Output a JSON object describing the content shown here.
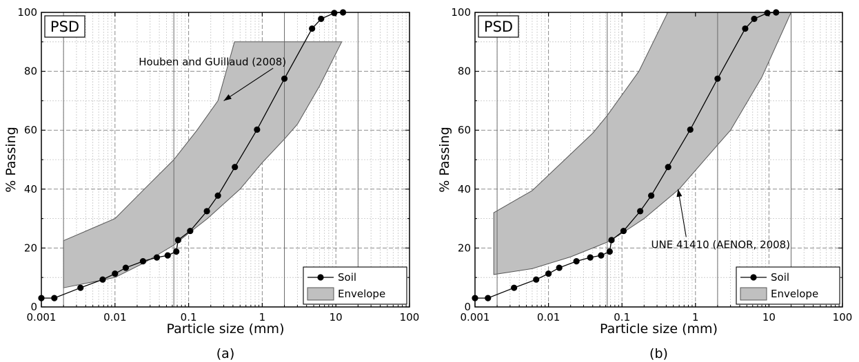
{
  "chart_data": [
    {
      "type": "line",
      "panel_caption": "(a)",
      "tag": "PSD",
      "xlabel": "Particle size (mm)",
      "ylabel": "% Passing",
      "xscale": "log",
      "xlim": [
        0.001,
        100
      ],
      "ylim": [
        0,
        100
      ],
      "x_ticks": [
        "0.001",
        "0.01",
        "0.1",
        "1",
        "10",
        "100"
      ],
      "y_ticks": [
        "0",
        "20",
        "40",
        "60",
        "80",
        "100"
      ],
      "grid": true,
      "reference_lines_x": [
        0.002,
        0.063,
        2,
        20
      ],
      "legend_position": "bottom-right",
      "series": [
        {
          "name": "Soil",
          "kind": "line-marker",
          "x": [
            0.001,
            0.0015,
            0.0034,
            0.0068,
            0.01,
            0.014,
            0.024,
            0.037,
            0.052,
            0.068,
            0.072,
            0.105,
            0.177,
            0.25,
            0.425,
            0.85,
            2.0,
            4.75,
            6.3,
            9.5,
            12.5
          ],
          "y": [
            3,
            3,
            6.5,
            9.3,
            11.3,
            13.3,
            15.5,
            16.8,
            17.5,
            18.8,
            22.7,
            25.8,
            32.5,
            37.8,
            47.5,
            60.2,
            77.5,
            94.5,
            97.8,
            99.8,
            100
          ]
        },
        {
          "name": "Envelope",
          "kind": "band",
          "upper_x": [
            0.002,
            0.01,
            0.025,
            0.063,
            0.13,
            0.25,
            0.42,
            12
          ],
          "upper_y": [
            22.5,
            30,
            40,
            50,
            60,
            70,
            90,
            90
          ],
          "lower_x": [
            0.002,
            0.01,
            0.025,
            0.063,
            0.1,
            0.18,
            0.5,
            1,
            2,
            3,
            6,
            12
          ],
          "lower_y": [
            6.5,
            10,
            15,
            21,
            25,
            30,
            40,
            49,
            57,
            62,
            75,
            90
          ]
        }
      ],
      "annotations": [
        {
          "text": "Houben and GUillaud (2008)",
          "x": 0.021,
          "y": 82,
          "arrow_to_x": 0.3,
          "arrow_to_y": 70
        }
      ]
    },
    {
      "type": "line",
      "panel_caption": "(b)",
      "tag": "PSD",
      "xlabel": "Particle size (mm)",
      "ylabel": "% Passing",
      "xscale": "log",
      "xlim": [
        0.001,
        100
      ],
      "ylim": [
        0,
        100
      ],
      "x_ticks": [
        "0.001",
        "0.01",
        "0.1",
        "1",
        "10",
        "100"
      ],
      "y_ticks": [
        "0",
        "20",
        "40",
        "60",
        "80",
        "100"
      ],
      "grid": true,
      "reference_lines_x": [
        0.002,
        0.063,
        2,
        20
      ],
      "legend_position": "bottom-right",
      "series": [
        {
          "name": "Soil",
          "kind": "line-marker",
          "x": [
            0.001,
            0.0015,
            0.0034,
            0.0068,
            0.01,
            0.014,
            0.024,
            0.037,
            0.052,
            0.068,
            0.072,
            0.105,
            0.177,
            0.25,
            0.425,
            0.85,
            2.0,
            4.75,
            6.3,
            9.5,
            12.5
          ],
          "y": [
            3,
            3,
            6.5,
            9.3,
            11.3,
            13.3,
            15.5,
            16.8,
            17.5,
            18.8,
            22.7,
            25.8,
            32.5,
            37.8,
            47.5,
            60.2,
            77.5,
            94.5,
            97.8,
            99.8,
            100
          ]
        },
        {
          "name": "Envelope",
          "kind": "band",
          "upper_x": [
            0.0018,
            0.006,
            0.04,
            0.063,
            0.17,
            0.42,
            20
          ],
          "upper_y": [
            32,
            39.5,
            59,
            65,
            80,
            100,
            100
          ],
          "lower_x": [
            0.0018,
            0.006,
            0.02,
            0.04,
            0.063,
            0.1,
            0.2,
            0.6,
            2,
            3,
            8,
            20
          ],
          "lower_y": [
            11,
            13,
            17,
            20,
            22,
            25,
            30,
            40,
            55,
            60,
            78,
            100
          ]
        }
      ],
      "annotations": [
        {
          "text": "UNE 41410 (AENOR, 2008)",
          "x": 2.2,
          "y": 20,
          "arrow_to_x": 0.58,
          "arrow_to_y": 40
        }
      ]
    }
  ]
}
